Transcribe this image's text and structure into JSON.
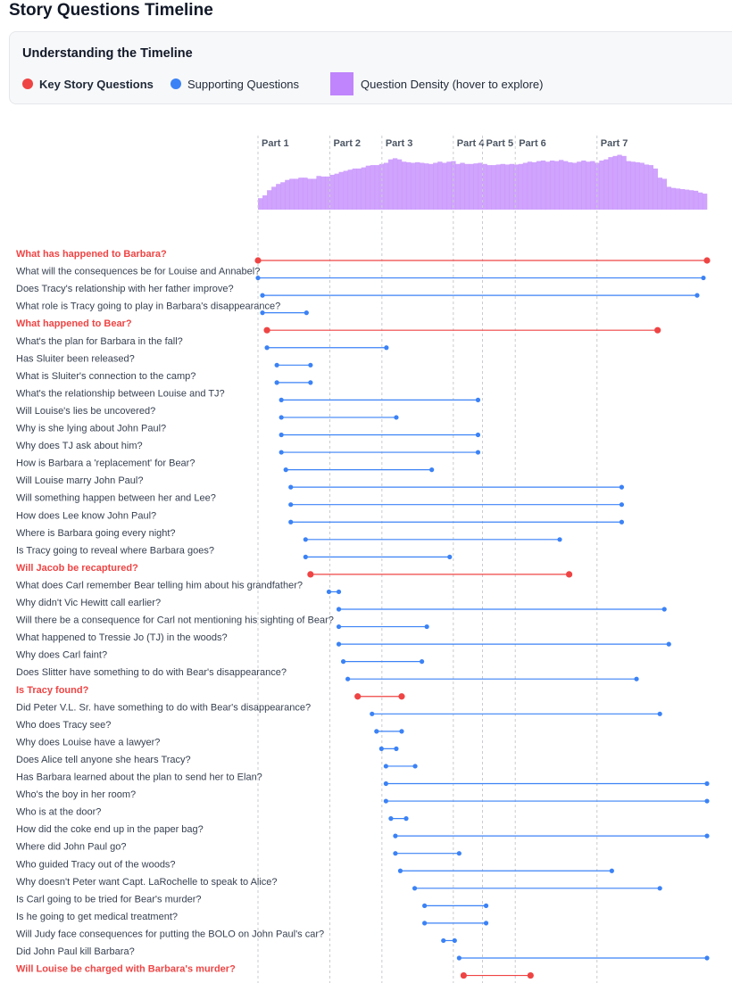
{
  "page_title": "Story Questions Timeline",
  "legend": {
    "title": "Understanding the Timeline",
    "key_label": "Key Story Questions",
    "support_label": "Supporting Questions",
    "density_label": "Question Density (hover to explore)"
  },
  "colors": {
    "key": "#ef4444",
    "supporting": "#3b82f6",
    "density": "#c084fc",
    "part_line": "#c9cbd0"
  },
  "chart_data": {
    "type": "timeline",
    "title": "Story Questions Timeline",
    "x_range": [
      0,
      100
    ],
    "x_unit": "percent of story",
    "parts": [
      {
        "label": "Part 1",
        "start": 0
      },
      {
        "label": "Part 2",
        "start": 16
      },
      {
        "label": "Part 3",
        "start": 27.6
      },
      {
        "label": "Part 4",
        "start": 43.5
      },
      {
        "label": "Part 5",
        "start": 50
      },
      {
        "label": "Part 6",
        "start": 57.3
      },
      {
        "label": "Part 7",
        "start": 75.5
      }
    ],
    "density": [
      20,
      25,
      34,
      40,
      45,
      48,
      52,
      54,
      54,
      56,
      56,
      54,
      54,
      59,
      58,
      58,
      61,
      63,
      66,
      68,
      70,
      72,
      72,
      74,
      77,
      78,
      78,
      80,
      82,
      88,
      90,
      88,
      84,
      83,
      82,
      83,
      82,
      81,
      80,
      82,
      84,
      82,
      84,
      85,
      80,
      82,
      80,
      80,
      81,
      82,
      80,
      78,
      78,
      79,
      80,
      79,
      80,
      79,
      80,
      82,
      84,
      83,
      85,
      86,
      84,
      86,
      85,
      87,
      85,
      83,
      82,
      84,
      86,
      84,
      85,
      82,
      86,
      88,
      92,
      94,
      96,
      94,
      85,
      84,
      83,
      82,
      79,
      78,
      72,
      56,
      54,
      40,
      38,
      37,
      36,
      35,
      34,
      33,
      30,
      28
    ],
    "questions": [
      {
        "text": "What has happened to Barbara?",
        "key": true,
        "start": 0,
        "end": 100
      },
      {
        "text": "What will the consequences be for Louise and Annabel?",
        "key": false,
        "start": 0,
        "end": 99.2
      },
      {
        "text": "Does Tracy's relationship with her father improve?",
        "key": false,
        "start": 1,
        "end": 97.8
      },
      {
        "text": "What role is Tracy going to play in Barbara's disappearance?",
        "key": false,
        "start": 1,
        "end": 10.8
      },
      {
        "text": "What happened to Bear?",
        "key": true,
        "start": 2,
        "end": 89
      },
      {
        "text": "What's the plan for Barbara in the fall?",
        "key": false,
        "start": 2,
        "end": 28.6
      },
      {
        "text": "Has Sluiter been released?",
        "key": false,
        "start": 4.2,
        "end": 11.7
      },
      {
        "text": "What is Sluiter's connection to the camp?",
        "key": false,
        "start": 4.2,
        "end": 11.7
      },
      {
        "text": "What's the relationship between Louise and TJ?",
        "key": false,
        "start": 5.2,
        "end": 49
      },
      {
        "text": "Will Louise's lies be uncovered?",
        "key": false,
        "start": 5.2,
        "end": 30.8
      },
      {
        "text": "Why is she lying about John Paul?",
        "key": false,
        "start": 5.2,
        "end": 49
      },
      {
        "text": "Why does TJ ask about him?",
        "key": false,
        "start": 5.2,
        "end": 49
      },
      {
        "text": "How is Barbara a 'replacement' for Bear?",
        "key": false,
        "start": 6.2,
        "end": 38.7
      },
      {
        "text": "Will Louise marry John Paul?",
        "key": false,
        "start": 7.3,
        "end": 81
      },
      {
        "text": "Will something happen between her and Lee?",
        "key": false,
        "start": 7.3,
        "end": 81
      },
      {
        "text": "How does Lee know John Paul?",
        "key": false,
        "start": 7.3,
        "end": 81
      },
      {
        "text": "Where is Barbara going every night?",
        "key": false,
        "start": 10.6,
        "end": 67.2
      },
      {
        "text": "Is Tracy going to reveal where Barbara goes?",
        "key": false,
        "start": 10.6,
        "end": 42.7
      },
      {
        "text": "Will Jacob be recaptured?",
        "key": true,
        "start": 11.7,
        "end": 69.3
      },
      {
        "text": "What does Carl remember Bear telling him about his grandfather?",
        "key": false,
        "start": 15.8,
        "end": 18
      },
      {
        "text": "Why didn't Vic Hewitt call earlier?",
        "key": false,
        "start": 18,
        "end": 90.5
      },
      {
        "text": "Will there be a consequence for Carl not mentioning his sighting of Bear?",
        "key": false,
        "start": 18,
        "end": 37.6
      },
      {
        "text": "What happened to Tressie Jo (TJ) in the woods?",
        "key": false,
        "start": 18,
        "end": 91.5
      },
      {
        "text": "Why does Carl faint?",
        "key": false,
        "start": 19,
        "end": 36.5
      },
      {
        "text": "Does Slitter have something to do with Bear's disappearance?",
        "key": false,
        "start": 20,
        "end": 84.3
      },
      {
        "text": "Is Tracy found?",
        "key": true,
        "start": 22.2,
        "end": 32
      },
      {
        "text": "Did Peter V.L. Sr. have something to do with Bear's disappearance?",
        "key": false,
        "start": 25.4,
        "end": 89.5
      },
      {
        "text": "Who does Tracy see?",
        "key": false,
        "start": 26.4,
        "end": 32
      },
      {
        "text": "Why does Louise have a lawyer?",
        "key": false,
        "start": 27.5,
        "end": 30.8
      },
      {
        "text": "Does Alice tell anyone she hears Tracy?",
        "key": false,
        "start": 28.5,
        "end": 35
      },
      {
        "text": "Has Barbara learned about the plan to send her to Elan?",
        "key": false,
        "start": 28.5,
        "end": 100
      },
      {
        "text": "Who's the boy in her room?",
        "key": false,
        "start": 28.5,
        "end": 100
      },
      {
        "text": "Who is at the door?",
        "key": false,
        "start": 29.6,
        "end": 33
      },
      {
        "text": "How did the coke end up in the paper bag?",
        "key": false,
        "start": 30.6,
        "end": 100
      },
      {
        "text": "Where did John Paul go?",
        "key": false,
        "start": 30.6,
        "end": 44.8
      },
      {
        "text": "Who guided Tracy out of the woods?",
        "key": false,
        "start": 31.7,
        "end": 78.8
      },
      {
        "text": "Why doesn't Peter want Capt. LaRochelle to speak to Alice?",
        "key": false,
        "start": 34.9,
        "end": 89.5
      },
      {
        "text": "Is Carl going to be tried for Bear's murder?",
        "key": false,
        "start": 37.1,
        "end": 50.8
      },
      {
        "text": "Is he going to get medical treatment?",
        "key": false,
        "start": 37.1,
        "end": 50.8
      },
      {
        "text": "Will Judy face consequences for putting the BOLO on John Paul's car?",
        "key": false,
        "start": 41.3,
        "end": 43.8
      },
      {
        "text": "Did John Paul kill Barbara?",
        "key": false,
        "start": 44.8,
        "end": 100
      },
      {
        "text": "Will Louise be charged with Barbara's murder?",
        "key": true,
        "start": 45.8,
        "end": 60.7
      }
    ]
  }
}
